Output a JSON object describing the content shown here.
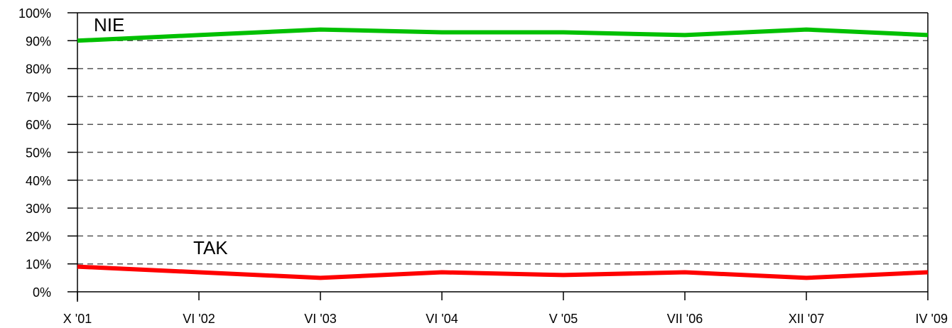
{
  "chart_data": {
    "type": "line",
    "title": "",
    "xlabel": "",
    "ylabel": "",
    "categories": [
      "X '01",
      "VI '02",
      "VI '03",
      "VI '04",
      "V '05",
      "VII '06",
      "XII '07",
      "IV '09"
    ],
    "y_ticks": [
      "0%",
      "10%",
      "20%",
      "30%",
      "40%",
      "50%",
      "60%",
      "70%",
      "80%",
      "90%",
      "100%"
    ],
    "ylim": [
      0,
      100
    ],
    "grid": "dashed-horizontal",
    "legend": "inline-labels",
    "series": [
      {
        "name": "NIE",
        "color": "#00c000",
        "values": [
          90,
          92,
          94,
          93,
          93,
          92,
          94,
          92
        ]
      },
      {
        "name": "TAK",
        "color": "#ff0000",
        "values": [
          9,
          7,
          5,
          7,
          6,
          7,
          5,
          7
        ]
      }
    ]
  }
}
